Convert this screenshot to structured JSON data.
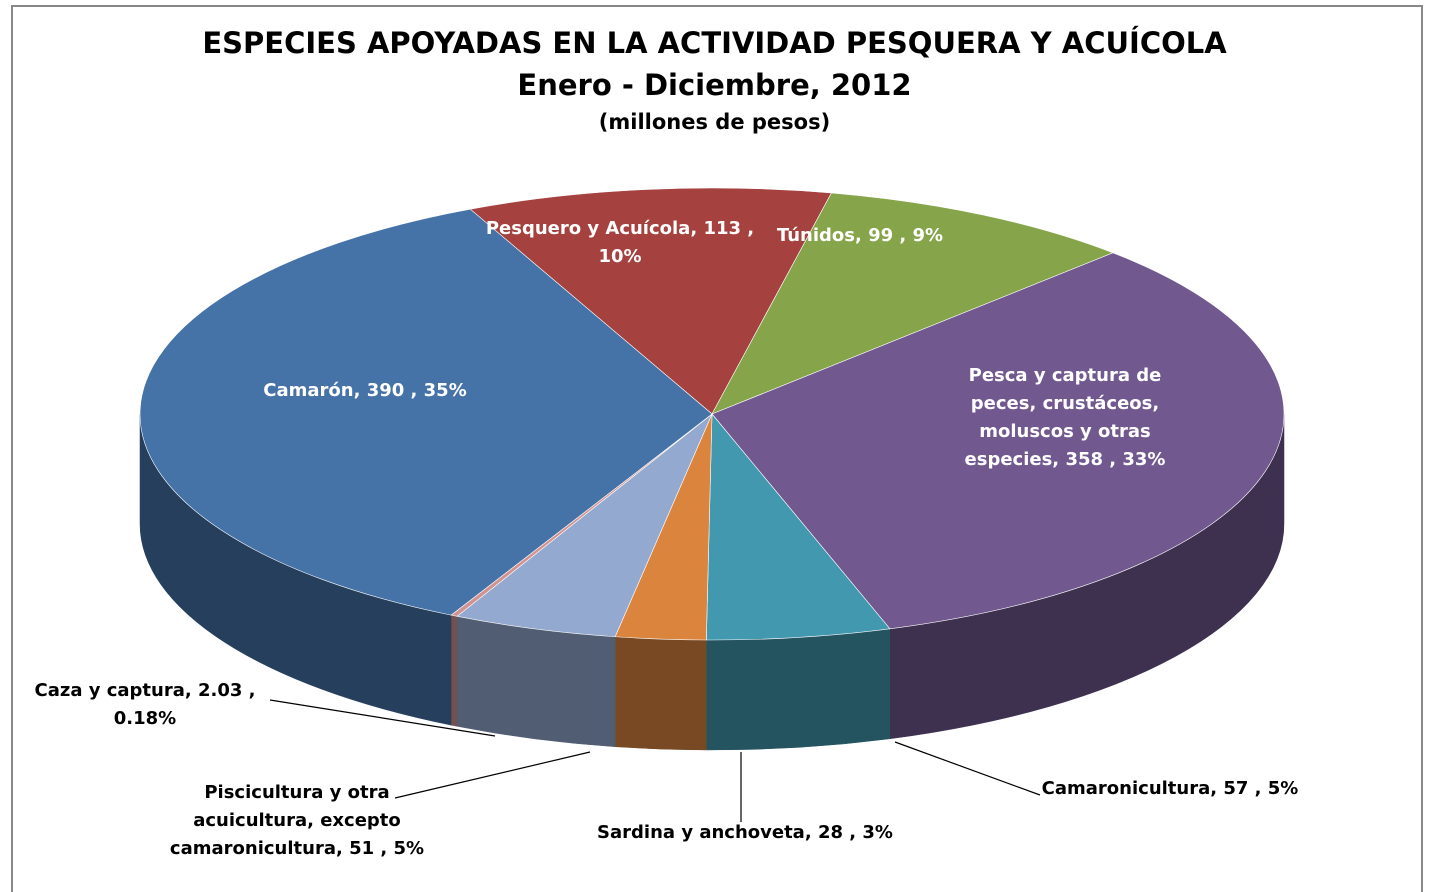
{
  "chart_data": {
    "type": "pie3d",
    "title": "ESPECIES APOYADAS EN LA ACTIVIDAD PESQUERA Y ACUÍCOLA",
    "subtitle": "Enero - Diciembre, 2012",
    "units": "(millones de pesos)",
    "categories": [
      "Pesquero y Acuícola,",
      "Túnidos,",
      "Pesca y captura de peces, crustáceos, moluscos y otras especies,",
      "Camaronicultura,",
      "Sardina y anchoveta,",
      "Piscicultura y otra acuicultura, excepto camaronicultura,",
      "Caza y captura,",
      "Camarón,"
    ],
    "values": [
      113,
      99,
      358,
      57,
      28,
      51,
      2.03,
      390
    ],
    "value_labels": [
      "113 , 10%",
      "99 , 9%",
      "358 , 33%",
      "57 , 5%",
      "28 , 3%",
      "51 , 5%",
      "2.03 , 0.18%",
      "390 , 35%"
    ],
    "colors": [
      "#a5423f",
      "#86a44a",
      "#71588f",
      "#4198af",
      "#db843d",
      "#93a9cf",
      "#d19392",
      "#4572a7"
    ]
  }
}
